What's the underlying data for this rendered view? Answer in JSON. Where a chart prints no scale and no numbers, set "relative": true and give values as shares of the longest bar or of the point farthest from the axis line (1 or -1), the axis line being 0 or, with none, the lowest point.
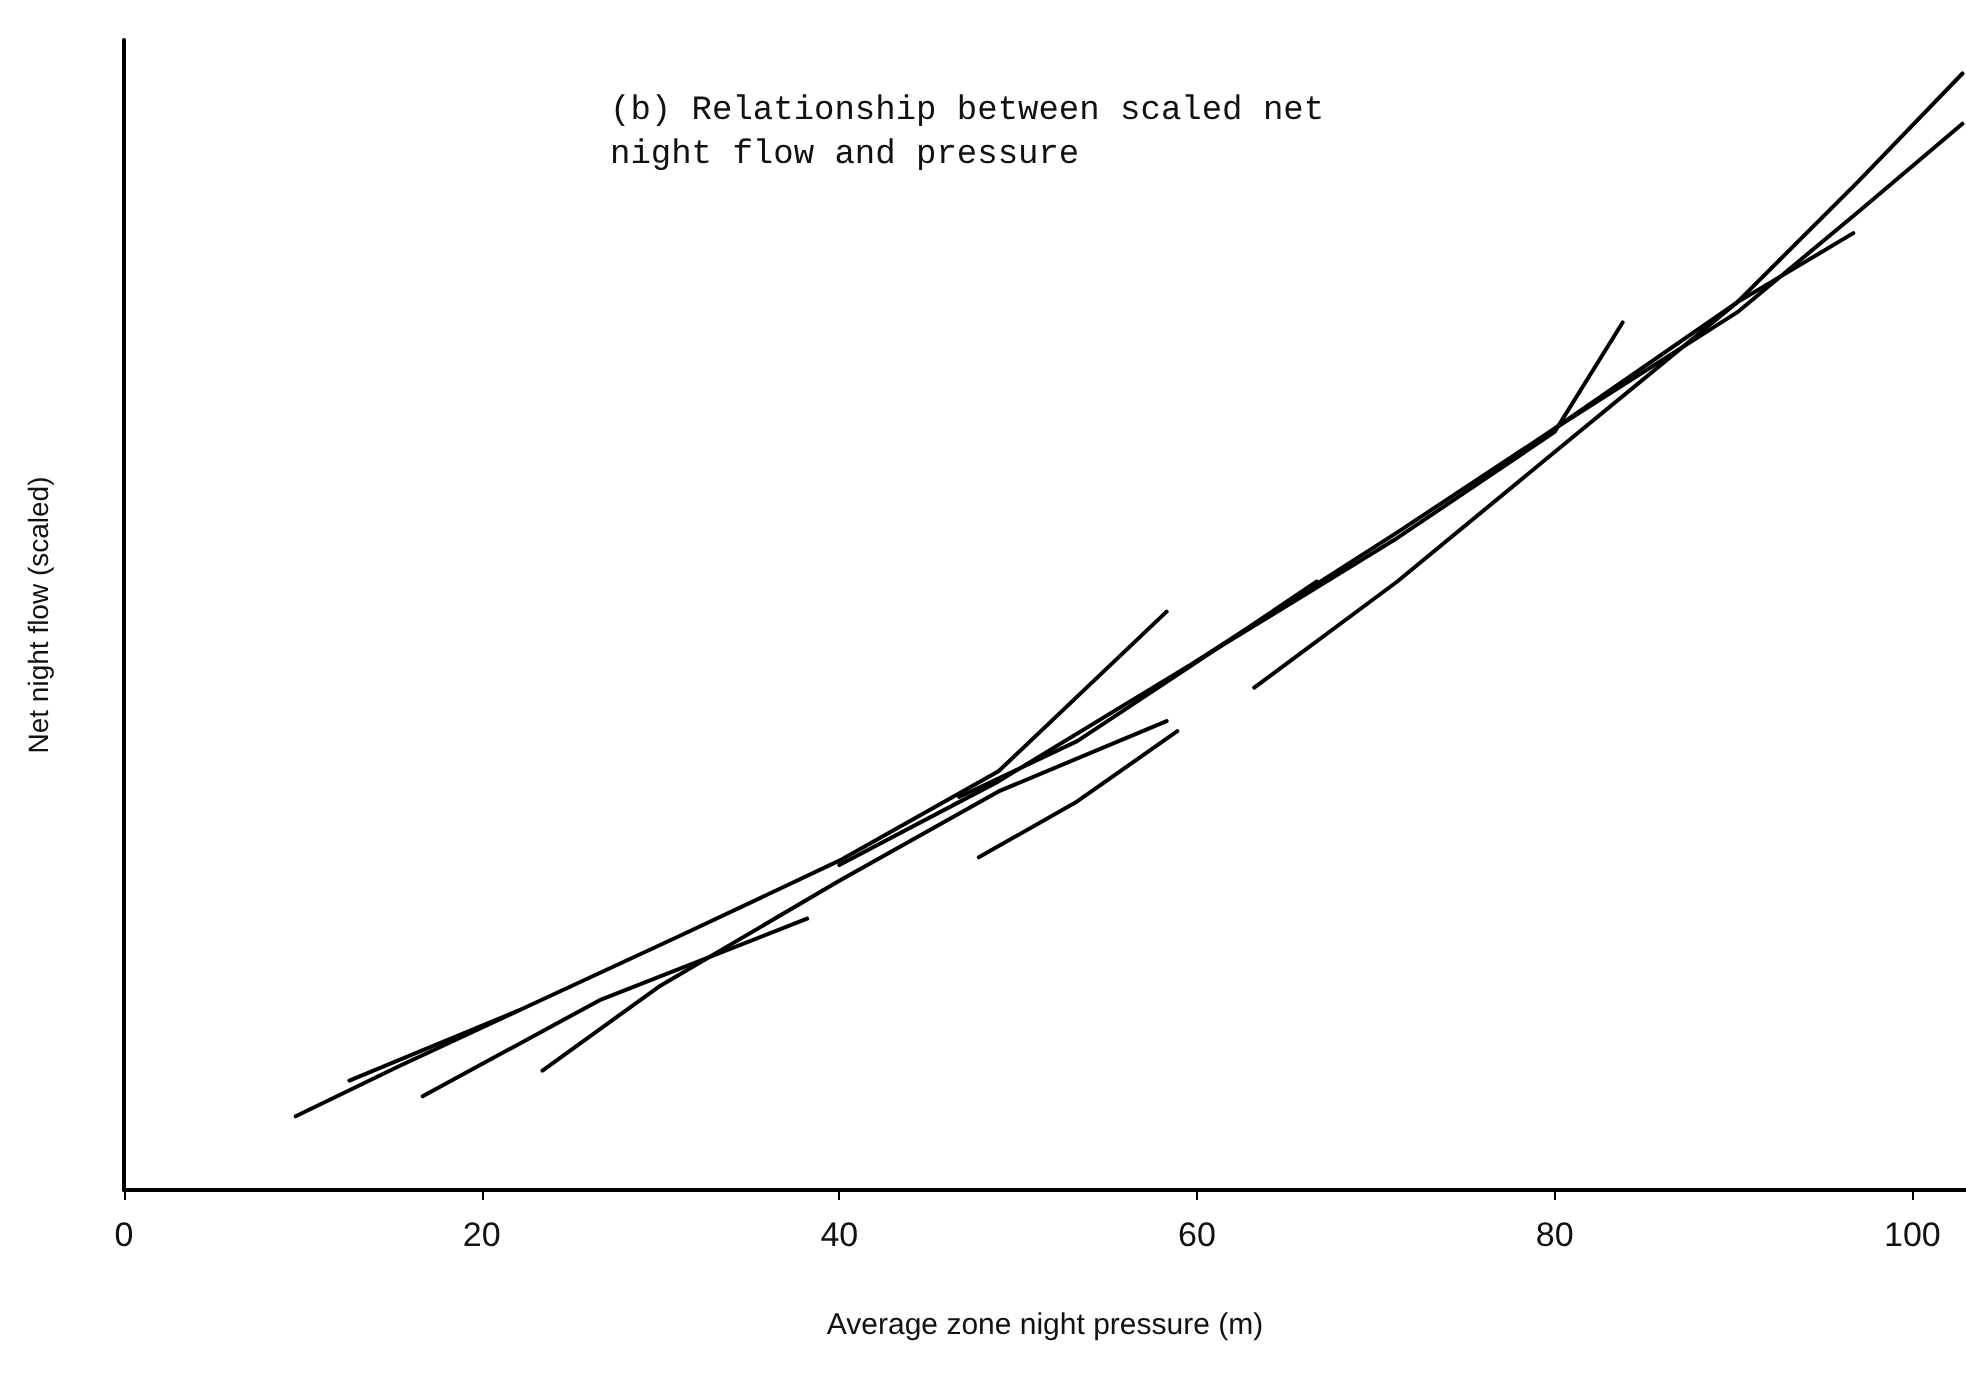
{
  "chart_data": {
    "type": "line",
    "title": "(b) Relationship between scaled net night flow and pressure",
    "xlabel": "Average zone night pressure (m)",
    "ylabel": "Net night flow (scaled)",
    "relative": true,
    "xlim": [
      0,
      103
    ],
    "xticks": [
      0,
      20,
      40,
      60,
      80,
      100
    ],
    "marker": "none",
    "line_style": "solid",
    "series": [
      {
        "color": "#000000",
        "x": [
          9.6,
          15.4,
          22.1
        ],
        "values": [
          0.066,
          0.111,
          0.161
        ]
      },
      {
        "color": "#000000",
        "x": [
          12.6,
          22.1,
          31.0,
          40.0,
          48.9,
          58.3
        ],
        "values": [
          0.098,
          0.161,
          0.227,
          0.295,
          0.375,
          0.518
        ]
      },
      {
        "color": "#000000",
        "x": [
          16.7,
          26.6,
          38.2
        ],
        "values": [
          0.084,
          0.17,
          0.243
        ]
      },
      {
        "color": "#000000",
        "x": [
          23.4,
          29.9,
          40.0,
          48.9,
          58.3
        ],
        "values": [
          0.107,
          0.182,
          0.277,
          0.357,
          0.42
        ]
      },
      {
        "color": "#000000",
        "x": [
          47.8,
          53.3,
          58.9
        ],
        "values": [
          0.298,
          0.348,
          0.411
        ]
      },
      {
        "color": "#000000",
        "x": [
          46.7,
          53.3,
          60.0,
          66.7
        ],
        "values": [
          0.352,
          0.402,
          0.473,
          0.545
        ]
      },
      {
        "color": "#000000",
        "x": [
          63.2,
          71.2,
          80.0,
          90.2,
          96.7
        ],
        "values": [
          0.45,
          0.545,
          0.661,
          0.795,
          0.857
        ]
      },
      {
        "color": "#000000",
        "x": [
          40.0,
          48.9,
          59.9,
          71.2,
          80.0,
          83.8
        ],
        "values": [
          0.291,
          0.366,
          0.473,
          0.584,
          0.679,
          0.777
        ]
      },
      {
        "color": "#000000",
        "x": [
          59.9,
          71.2,
          80.0,
          90.2,
          96.9,
          102.8
        ],
        "values": [
          0.473,
          0.589,
          0.682,
          0.795,
          0.902,
          1.0
        ]
      },
      {
        "color": "#000000",
        "x": [
          80.0,
          90.2,
          96.9,
          102.8
        ],
        "values": [
          0.682,
          0.786,
          0.875,
          0.955
        ]
      }
    ]
  }
}
